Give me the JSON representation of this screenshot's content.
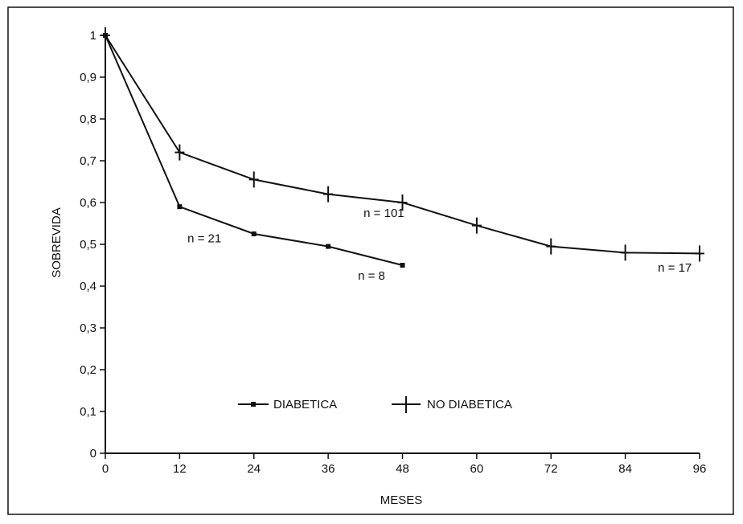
{
  "chart_data": {
    "type": "line",
    "title": "",
    "xlabel": "MESES",
    "ylabel": "SOBREVIDA",
    "xlim": [
      0,
      96
    ],
    "ylim": [
      0,
      1
    ],
    "grid": false,
    "legend_position": "lower-center",
    "x_ticks": [
      "0",
      "12",
      "24",
      "36",
      "48",
      "60",
      "72",
      "84",
      "96"
    ],
    "y_ticks": [
      "0",
      "0,1",
      "0,2",
      "0,3",
      "0,4",
      "0,5",
      "0,6",
      "0,7",
      "0,8",
      "0,9",
      "1"
    ],
    "series": [
      {
        "name": "DIABETICA",
        "marker": "square",
        "x": [
          0,
          12,
          24,
          36,
          48
        ],
        "values": [
          1,
          0.59,
          0.525,
          0.495,
          0.45
        ]
      },
      {
        "name": "NO DIABETICA",
        "marker": "plus",
        "x": [
          0,
          12,
          24,
          36,
          48,
          60,
          72,
          84,
          96
        ],
        "values": [
          1,
          0.72,
          0.655,
          0.62,
          0.6,
          0.545,
          0.495,
          0.48,
          0.478
        ]
      }
    ],
    "annotations": [
      {
        "text": "n = 21",
        "x": 16,
        "y": 0.505
      },
      {
        "text": "n = 8",
        "x": 43,
        "y": 0.415
      },
      {
        "text": "n = 101",
        "x": 45,
        "y": 0.565
      },
      {
        "text": "n = 17",
        "x": 92,
        "y": 0.435
      }
    ]
  }
}
